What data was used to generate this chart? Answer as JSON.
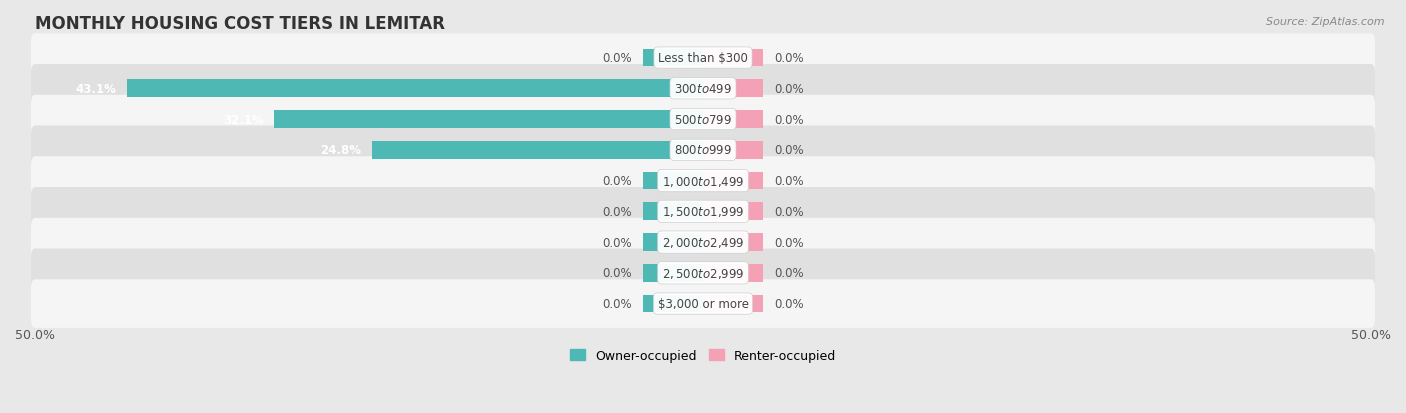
{
  "title": "MONTHLY HOUSING COST TIERS IN LEMITAR",
  "source": "Source: ZipAtlas.com",
  "categories": [
    "Less than $300",
    "$300 to $499",
    "$500 to $799",
    "$800 to $999",
    "$1,000 to $1,499",
    "$1,500 to $1,999",
    "$2,000 to $2,499",
    "$2,500 to $2,999",
    "$3,000 or more"
  ],
  "owner_values": [
    0.0,
    43.1,
    32.1,
    24.8,
    0.0,
    0.0,
    0.0,
    0.0,
    0.0
  ],
  "renter_values": [
    0.0,
    0.0,
    0.0,
    0.0,
    0.0,
    0.0,
    0.0,
    0.0,
    0.0
  ],
  "owner_color": "#4db8b4",
  "renter_color": "#f4a0b5",
  "owner_label": "Owner-occupied",
  "renter_label": "Renter-occupied",
  "xlim": 50.0,
  "stub_size": 4.5,
  "bar_height": 0.58,
  "background_color": "#e8e8e8",
  "row_bg_light": "#f5f5f5",
  "row_bg_dark": "#e0e0e0",
  "label_fontsize": 8.5,
  "title_fontsize": 12,
  "source_fontsize": 8,
  "axis_label_fontsize": 9,
  "legend_fontsize": 9,
  "cat_label_fontsize": 8.5
}
